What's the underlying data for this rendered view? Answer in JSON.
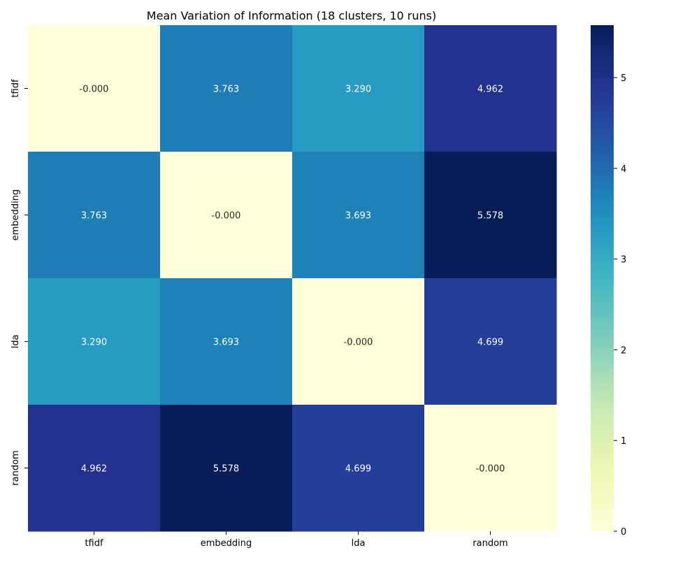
{
  "chart_data": {
    "type": "heatmap",
    "title": "Mean Variation of Information (18 clusters, 10 runs)",
    "xlabel": "",
    "ylabel": "",
    "x_categories": [
      "tfidf",
      "embedding",
      "lda",
      "random"
    ],
    "y_categories": [
      "tfidf",
      "embedding",
      "lda",
      "random"
    ],
    "values": [
      [
        0.0,
        3.763,
        3.29,
        4.962
      ],
      [
        3.763,
        0.0,
        3.693,
        5.578
      ],
      [
        3.29,
        3.693,
        0.0,
        4.699
      ],
      [
        4.962,
        5.578,
        4.699,
        0.0
      ]
    ],
    "cell_labels": [
      [
        "-0.000",
        "3.763",
        "3.290",
        "4.962"
      ],
      [
        "3.763",
        "-0.000",
        "3.693",
        "5.578"
      ],
      [
        "3.290",
        "3.693",
        "-0.000",
        "4.699"
      ],
      [
        "4.962",
        "5.578",
        "4.699",
        "-0.000"
      ]
    ],
    "colormap": "YlGnBu",
    "colorbar": {
      "range": [
        0,
        5.578
      ],
      "ticks": [
        0,
        1,
        2,
        3,
        4,
        5
      ],
      "tick_labels": [
        "0",
        "1",
        "2",
        "3",
        "4",
        "5"
      ]
    }
  }
}
